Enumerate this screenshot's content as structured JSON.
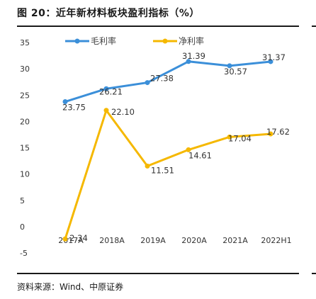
{
  "page": {
    "title": "图 20：近年新材料板块盈利指标（%）",
    "source": "资料来源：Wind、中原证券"
  },
  "chart_data": {
    "type": "line",
    "categories": [
      "2017A",
      "2018A",
      "2019A",
      "2020A",
      "2021A",
      "2022H1"
    ],
    "ylim": [
      -5,
      35
    ],
    "yticks": [
      35,
      30,
      25,
      20,
      15,
      10,
      5,
      0,
      -5
    ],
    "grid": false,
    "legend_position": "top",
    "series": [
      {
        "name": "毛利率",
        "color": "#3b8fd9",
        "values": [
          23.75,
          26.21,
          27.38,
          31.39,
          30.57,
          31.37
        ],
        "labels": [
          "23.75",
          "26.21",
          "27.38",
          "31.39",
          "30.57",
          "31.37"
        ],
        "label_colors": [
          "#333333",
          "#333333",
          "#333333",
          "#333333",
          "#333333",
          "#333333"
        ]
      },
      {
        "name": "净利率",
        "color": "#f5b800",
        "values": [
          -2.34,
          22.1,
          11.51,
          14.61,
          17.04,
          17.62
        ],
        "labels": [
          "-2.34",
          "22.10",
          "11.51",
          "14.61",
          "17.04",
          "17.62"
        ],
        "label_colors": [
          "#d40000",
          "#333333",
          "#333333",
          "#333333",
          "#333333",
          "#333333"
        ]
      }
    ],
    "negative_tick_color": "#d40000"
  }
}
